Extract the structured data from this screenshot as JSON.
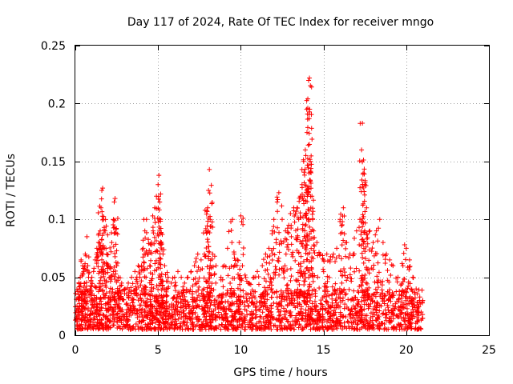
{
  "chart_data": {
    "type": "scatter",
    "title": "Day 117 of 2024, Rate Of TEC Index for receiver mngo",
    "xlabel": "GPS time / hours",
    "ylabel": "ROTI / TECUs",
    "xlim": [
      0,
      25
    ],
    "ylim": [
      0,
      0.25
    ],
    "x_ticks": [
      0,
      5,
      10,
      15,
      20,
      25
    ],
    "x_tick_labels": [
      "0",
      "5",
      "10",
      "15",
      "20",
      "25"
    ],
    "y_ticks": [
      0,
      0.05,
      0.1,
      0.15,
      0.2,
      0.25
    ],
    "y_tick_labels": [
      "0",
      "0.05",
      "0.1",
      "0.15",
      "0.2",
      "0.25"
    ],
    "grid": true,
    "marker": "+",
    "color": "#ff0000",
    "series": [
      {
        "points": [
          [
            0.05,
            0.015
          ],
          [
            0.1,
            0.025
          ],
          [
            0.15,
            0.02
          ],
          [
            0.2,
            0.035
          ],
          [
            0.25,
            0.04
          ],
          [
            0.3,
            0.05
          ],
          [
            0.35,
            0.065
          ],
          [
            0.4,
            0.03
          ],
          [
            0.45,
            0.06
          ],
          [
            0.5,
            0.055
          ],
          [
            0.55,
            0.045
          ],
          [
            0.6,
            0.07
          ],
          [
            0.7,
            0.085
          ],
          [
            0.75,
            0.06
          ],
          [
            0.8,
            0.05
          ],
          [
            0.9,
            0.04
          ],
          [
            1.0,
            0.05
          ],
          [
            1.1,
            0.055
          ],
          [
            1.2,
            0.065
          ],
          [
            1.3,
            0.075
          ],
          [
            1.4,
            0.08
          ],
          [
            1.5,
            0.09
          ],
          [
            1.55,
            0.11
          ],
          [
            1.6,
            0.125
          ],
          [
            1.65,
            0.127
          ],
          [
            1.7,
            0.1
          ],
          [
            1.8,
            0.09
          ],
          [
            1.9,
            0.07
          ],
          [
            2.0,
            0.06
          ],
          [
            2.1,
            0.05
          ],
          [
            2.2,
            0.08
          ],
          [
            2.3,
            0.1
          ],
          [
            2.35,
            0.115
          ],
          [
            2.4,
            0.118
          ],
          [
            2.5,
            0.06
          ],
          [
            2.6,
            0.05
          ],
          [
            2.8,
            0.045
          ],
          [
            3.0,
            0.04
          ],
          [
            3.2,
            0.045
          ],
          [
            3.4,
            0.05
          ],
          [
            3.6,
            0.055
          ],
          [
            3.8,
            0.06
          ],
          [
            3.9,
            0.05
          ],
          [
            4.0,
            0.06
          ],
          [
            4.1,
            0.075
          ],
          [
            4.2,
            0.09
          ],
          [
            4.3,
            0.1
          ],
          [
            4.4,
            0.07
          ],
          [
            4.5,
            0.06
          ],
          [
            4.6,
            0.08
          ],
          [
            4.7,
            0.09
          ],
          [
            4.8,
            0.11
          ],
          [
            4.9,
            0.12
          ],
          [
            5.0,
            0.13
          ],
          [
            5.05,
            0.138
          ],
          [
            5.1,
            0.115
          ],
          [
            5.15,
            0.1
          ],
          [
            5.2,
            0.08
          ],
          [
            5.3,
            0.07
          ],
          [
            5.4,
            0.06
          ],
          [
            5.6,
            0.05
          ],
          [
            5.8,
            0.045
          ],
          [
            6.0,
            0.05
          ],
          [
            6.2,
            0.055
          ],
          [
            6.4,
            0.05
          ],
          [
            6.6,
            0.045
          ],
          [
            6.8,
            0.05
          ],
          [
            7.0,
            0.055
          ],
          [
            7.2,
            0.06
          ],
          [
            7.4,
            0.07
          ],
          [
            7.6,
            0.065
          ],
          [
            7.8,
            0.07
          ],
          [
            7.9,
            0.09
          ],
          [
            8.0,
            0.11
          ],
          [
            8.05,
            0.125
          ],
          [
            8.1,
            0.143
          ],
          [
            8.15,
            0.1
          ],
          [
            8.3,
            0.07
          ],
          [
            8.5,
            0.06
          ],
          [
            8.8,
            0.05
          ],
          [
            9.0,
            0.06
          ],
          [
            9.2,
            0.075
          ],
          [
            9.4,
            0.098
          ],
          [
            9.5,
            0.1
          ],
          [
            9.6,
            0.07
          ],
          [
            9.8,
            0.065
          ],
          [
            9.9,
            0.08
          ],
          [
            10.0,
            0.103
          ],
          [
            10.1,
            0.06
          ],
          [
            10.3,
            0.05
          ],
          [
            10.5,
            0.045
          ],
          [
            10.8,
            0.05
          ],
          [
            11.0,
            0.055
          ],
          [
            11.3,
            0.06
          ],
          [
            11.5,
            0.07
          ],
          [
            11.7,
            0.075
          ],
          [
            11.9,
            0.09
          ],
          [
            12.0,
            0.1
          ],
          [
            12.2,
            0.115
          ],
          [
            12.3,
            0.123
          ],
          [
            12.5,
            0.1
          ],
          [
            12.7,
            0.09
          ],
          [
            12.9,
            0.095
          ],
          [
            13.0,
            0.105
          ],
          [
            13.2,
            0.11
          ],
          [
            13.4,
            0.11
          ],
          [
            13.5,
            0.1
          ],
          [
            13.6,
            0.12
          ],
          [
            13.7,
            0.13
          ],
          [
            13.8,
            0.15
          ],
          [
            13.9,
            0.16
          ],
          [
            14.0,
            0.175
          ],
          [
            14.05,
            0.196
          ],
          [
            14.1,
            0.22
          ],
          [
            14.15,
            0.222
          ],
          [
            14.2,
            0.15
          ],
          [
            14.3,
            0.12
          ],
          [
            14.4,
            0.09
          ],
          [
            14.6,
            0.08
          ],
          [
            14.8,
            0.07
          ],
          [
            15.0,
            0.065
          ],
          [
            15.2,
            0.07
          ],
          [
            15.4,
            0.065
          ],
          [
            15.6,
            0.07
          ],
          [
            15.8,
            0.075
          ],
          [
            16.0,
            0.1
          ],
          [
            16.2,
            0.11
          ],
          [
            16.4,
            0.08
          ],
          [
            16.6,
            0.07
          ],
          [
            16.8,
            0.07
          ],
          [
            17.0,
            0.09
          ],
          [
            17.2,
            0.1
          ],
          [
            17.3,
            0.16
          ],
          [
            17.35,
            0.183
          ],
          [
            17.4,
            0.14
          ],
          [
            17.5,
            0.13
          ],
          [
            17.6,
            0.11
          ],
          [
            17.8,
            0.09
          ],
          [
            18.0,
            0.08
          ],
          [
            18.2,
            0.09
          ],
          [
            18.4,
            0.1
          ],
          [
            18.6,
            0.08
          ],
          [
            18.8,
            0.07
          ],
          [
            19.0,
            0.065
          ],
          [
            19.2,
            0.06
          ],
          [
            19.5,
            0.05
          ],
          [
            19.8,
            0.06
          ],
          [
            19.9,
            0.078
          ],
          [
            20.0,
            0.075
          ],
          [
            20.2,
            0.065
          ],
          [
            20.4,
            0.05
          ],
          [
            20.6,
            0.04
          ],
          [
            20.8,
            0.03
          ],
          [
            20.9,
            0.02
          ]
        ]
      }
    ],
    "dense_band": {
      "x_range": [
        0,
        21
      ],
      "y_range": [
        0.005,
        0.04
      ]
    }
  }
}
